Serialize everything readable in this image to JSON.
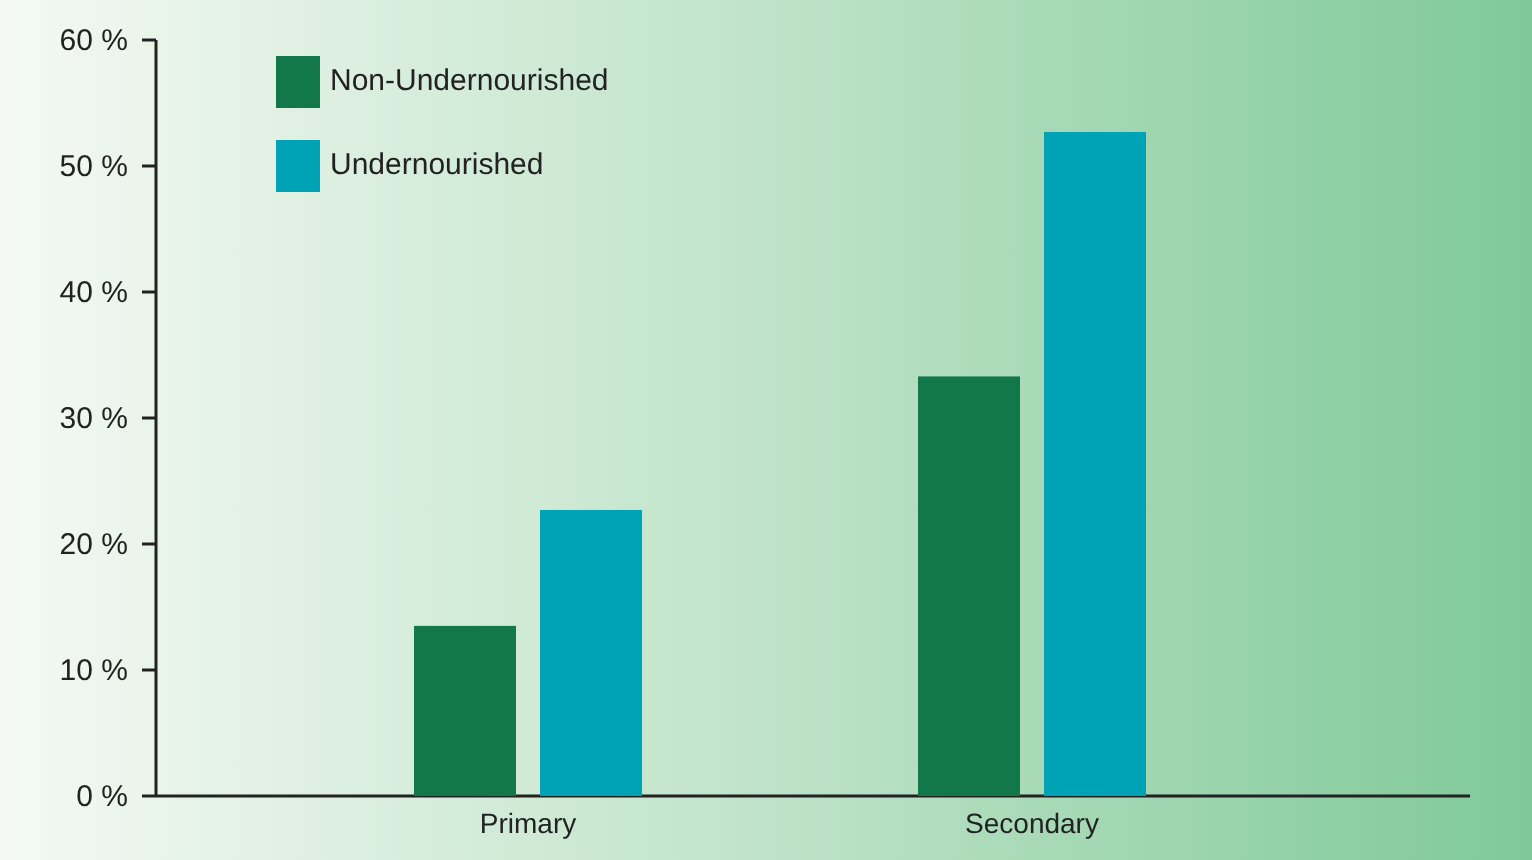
{
  "chart_data": {
    "type": "bar",
    "categories": [
      "Primary",
      "Secondary"
    ],
    "series": [
      {
        "name": "Non-Undernourished",
        "color": "#12784a",
        "values": [
          13.5,
          33.3
        ]
      },
      {
        "name": "Undernourished",
        "color": "#00a3b6",
        "values": [
          22.7,
          52.7
        ]
      }
    ],
    "ylim": [
      0,
      60
    ],
    "yticks": [
      {
        "value": 0,
        "label": "0 %"
      },
      {
        "value": 10,
        "label": "10 %"
      },
      {
        "value": 20,
        "label": "20 %"
      },
      {
        "value": 30,
        "label": "30 %"
      },
      {
        "value": 40,
        "label": "40 %"
      },
      {
        "value": 50,
        "label": "50 %"
      },
      {
        "value": 60,
        "label": "60 %"
      }
    ],
    "legend": "top left"
  }
}
